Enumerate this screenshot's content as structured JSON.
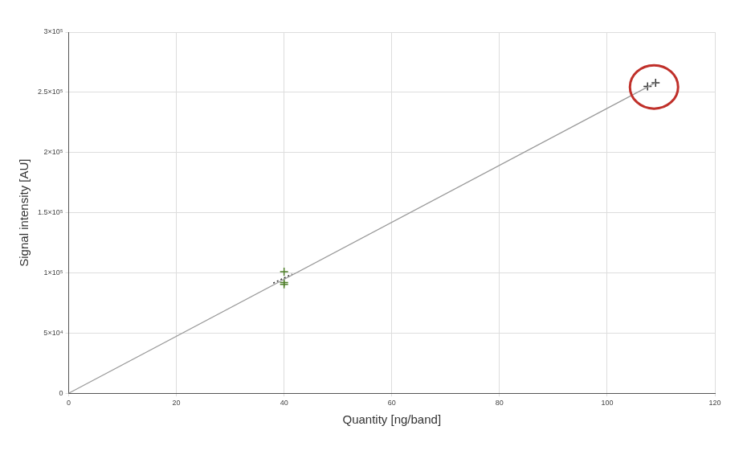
{
  "chart_data": {
    "type": "scatter",
    "x_label": "Quantity [ng/band]",
    "y_label": "Signal intensity [AU]",
    "xlim": [
      0,
      120
    ],
    "xticks": [
      0,
      20,
      40,
      60,
      80,
      100,
      120
    ],
    "ylim": [
      0,
      300000
    ],
    "yticks": [
      0,
      {
        "value": 50000,
        "label": "5×10⁴"
      },
      {
        "value": 100000,
        "label": "1×10⁵"
      },
      {
        "value": 150000,
        "label": "1.5×10⁵"
      },
      {
        "value": 200000,
        "label": "2×10⁵"
      },
      {
        "value": 250000,
        "label": "2.5×10⁵"
      },
      {
        "value": 300000,
        "label": "3×10⁵"
      }
    ],
    "grid": true,
    "series": [
      {
        "type": "line",
        "color": "#9a9a9a",
        "line_style": "solid",
        "x": [
          0,
          109
        ],
        "values": [
          0,
          258000
        ]
      },
      {
        "type": "line",
        "color": "#333333",
        "line_style": "dotted",
        "x": [
          38,
          41.5
        ],
        "values": [
          91500,
          99000
        ]
      },
      {
        "type": "scatter",
        "color": "#4f7f2a",
        "marker": "cross",
        "x": [
          40,
          40,
          40
        ],
        "values": [
          101000,
          92000,
          90500
        ]
      },
      {
        "type": "scatter",
        "color": "#333333",
        "marker": "cross",
        "x": [
          107.5,
          109
        ],
        "values": [
          255000,
          258000
        ]
      }
    ]
  }
}
